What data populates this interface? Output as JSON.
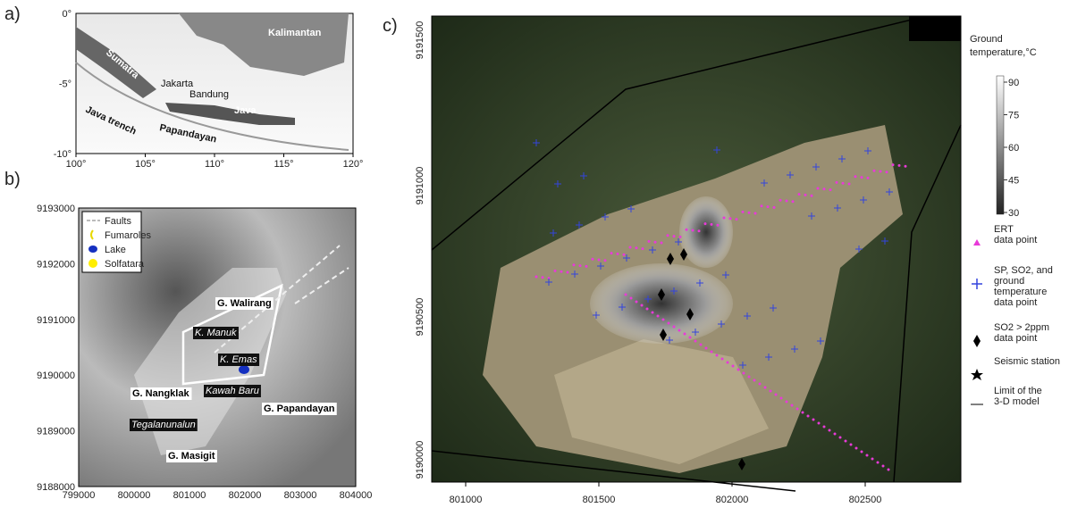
{
  "panels": {
    "a": {
      "label": "a)",
      "xticks": [
        "100°",
        "105°",
        "110°",
        "115°",
        "120°"
      ],
      "yticks": [
        "0°",
        "-5°",
        "-10°"
      ],
      "places": [
        "Kalimantan",
        "Sumatra",
        "Jakarta",
        "Bandung",
        "Java",
        "Java trench",
        "Papandayan"
      ]
    },
    "b": {
      "label": "b)",
      "xticks": [
        "799000",
        "800000",
        "801000",
        "802000",
        "803000",
        "804000"
      ],
      "yticks": [
        "9193000",
        "9192000",
        "9191000",
        "9190000",
        "9189000",
        "9188000"
      ],
      "legend": [
        "Faults",
        "Fumaroles",
        "Lake",
        "Solfatara"
      ],
      "places": [
        "G. Walirang",
        "K. Manuk",
        "K. Emas",
        "Kawah Baru",
        "G. Nangklak",
        "Tegalanunalun",
        "G. Papandayan",
        "G. Masigit"
      ]
    },
    "c": {
      "label": "c)",
      "xticks": [
        "801000",
        "801500",
        "802000",
        "802500"
      ],
      "yticks": [
        "9191500",
        "9191000",
        "9190500",
        "9190000"
      ],
      "colorbar": {
        "title": [
          "Ground",
          "temperature,°C"
        ],
        "ticks": [
          "90",
          "75",
          "60",
          "45",
          "30"
        ]
      },
      "legend": [
        [
          "ERT",
          "data point"
        ],
        [
          "SP, SO2, and",
          "ground",
          "temperature",
          "data point"
        ],
        [
          "SO2 > 2ppm",
          "data point"
        ],
        [
          "Seismic station"
        ],
        [
          "Limit of the",
          "3-D model"
        ]
      ]
    }
  }
}
